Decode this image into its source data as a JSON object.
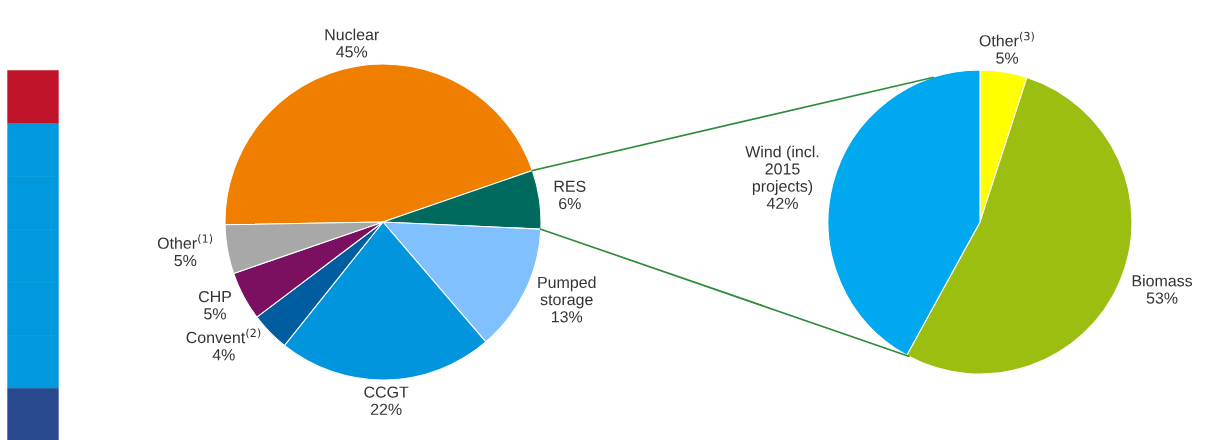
{
  "chart_data": [
    {
      "type": "pie",
      "categories": [
        "Nuclear",
        "RES",
        "Pumped\nstorage",
        "CCGT",
        "Convent$^{(2)}$",
        "CHP",
        "Other$^{(1)}$"
      ],
      "values": [
        45,
        6,
        13,
        22,
        4,
        5,
        5
      ],
      "colors": [
        "#f07f00",
        "#006a5e",
        "#80c0ff",
        "#0095dd",
        "#005ea0",
        "#7b1060",
        "#a8a8a8"
      ],
      "value_labels": [
        "45%",
        "6%",
        "13%",
        "22%",
        "4%",
        "5%",
        "5%"
      ]
    },
    {
      "type": "pie",
      "categories": [
        "Other$^{(3)}$",
        "Biomass",
        "Wind (incl.\n2015\nprojects)"
      ],
      "values": [
        5,
        53,
        42
      ],
      "colors": [
        "#ffff00",
        "#9cbe10",
        "#00a8f0"
      ],
      "value_labels": [
        "5%",
        "53%",
        "42%"
      ]
    }
  ]
}
